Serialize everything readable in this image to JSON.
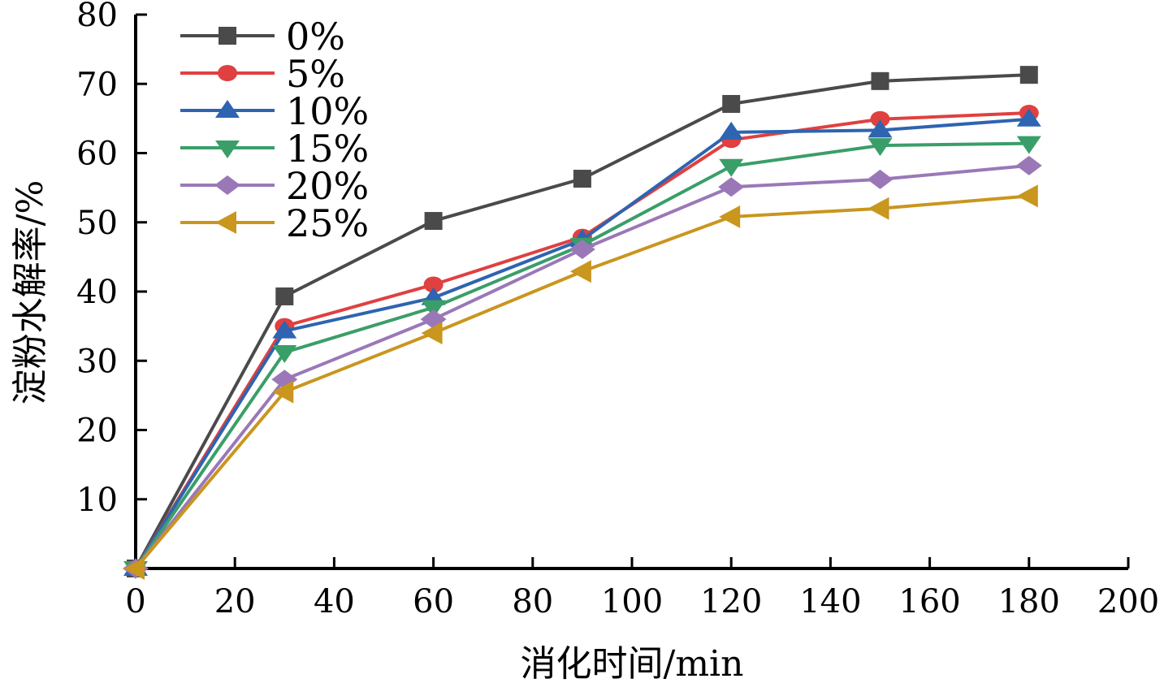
{
  "chart_data": {
    "type": "line",
    "title": "",
    "xlabel": "消化时间/min",
    "ylabel": "淀粉水解率/%",
    "xlim": [
      0,
      200
    ],
    "ylim": [
      0,
      80
    ],
    "xticks": [
      0,
      20,
      40,
      60,
      80,
      100,
      120,
      140,
      160,
      180,
      200
    ],
    "yticks": [
      10,
      20,
      30,
      40,
      50,
      60,
      70,
      80
    ],
    "grid": false,
    "legend_position": "top-left",
    "x": [
      0,
      30,
      60,
      90,
      120,
      150,
      180
    ],
    "series": [
      {
        "name": "0%",
        "color": "#4a4a4a",
        "marker": "square",
        "values": [
          0,
          39.3,
          50.2,
          56.3,
          67.1,
          70.4,
          71.3
        ]
      },
      {
        "name": "5%",
        "color": "#e04040",
        "marker": "circle",
        "values": [
          0,
          35.0,
          41.0,
          47.9,
          61.9,
          64.9,
          65.8
        ]
      },
      {
        "name": "10%",
        "color": "#2e64b0",
        "marker": "triangle-up",
        "values": [
          0,
          34.3,
          39.1,
          47.5,
          63.0,
          63.3,
          64.9
        ]
      },
      {
        "name": "15%",
        "color": "#3a9e68",
        "marker": "triangle-down",
        "values": [
          0,
          31.2,
          37.7,
          46.7,
          58.1,
          61.1,
          61.4
        ]
      },
      {
        "name": "20%",
        "color": "#9a78b8",
        "marker": "diamond",
        "values": [
          0,
          27.3,
          36.0,
          46.1,
          55.1,
          56.2,
          58.2
        ]
      },
      {
        "name": "25%",
        "color": "#c9961e",
        "marker": "triangle-left",
        "values": [
          0,
          25.5,
          34.0,
          42.9,
          50.8,
          52.0,
          53.8
        ]
      }
    ]
  }
}
